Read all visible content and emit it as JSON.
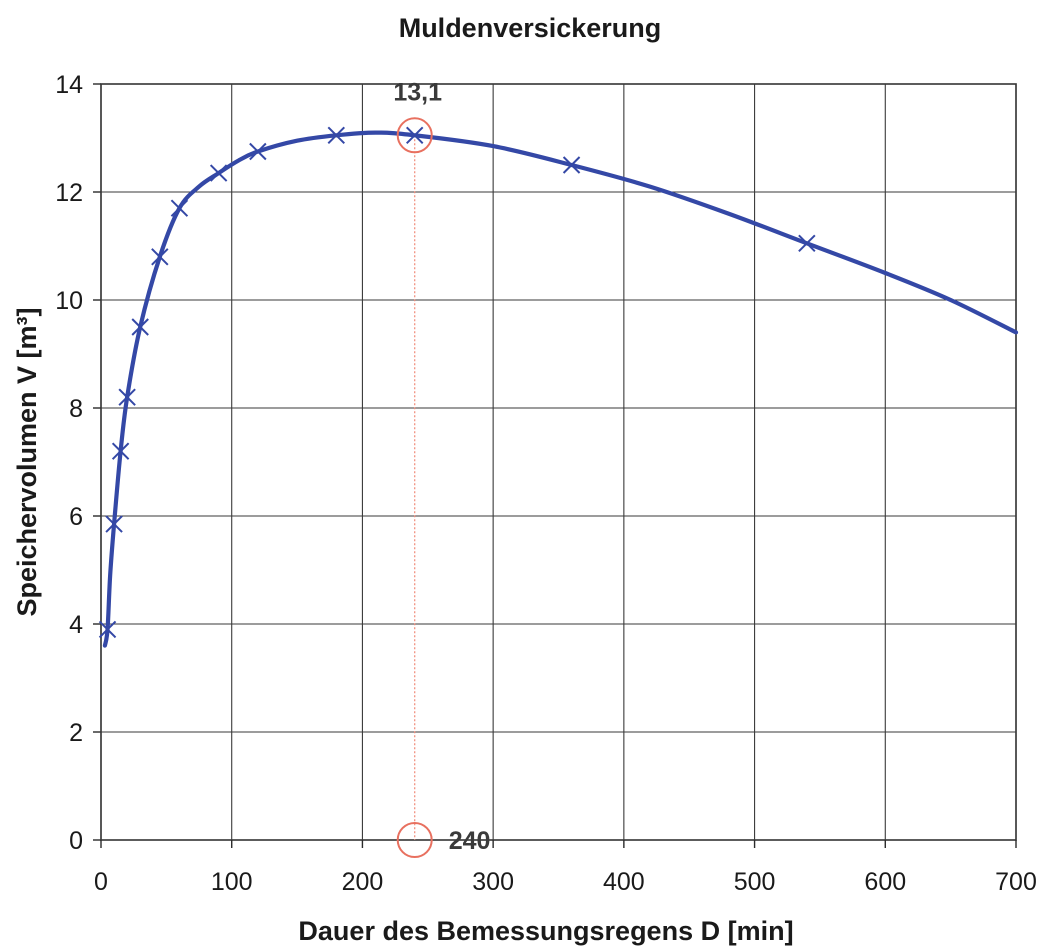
{
  "chart_data": {
    "type": "line",
    "title": "Muldenversickerung",
    "xlabel": "Dauer des Bemessungsregens  D [min]",
    "ylabel": "Speichervolumen V [m³]",
    "xlim": [
      0,
      700
    ],
    "ylim": [
      0,
      14
    ],
    "xticks": [
      "0",
      "100",
      "200",
      "300",
      "400",
      "500",
      "600",
      "700"
    ],
    "yticks": [
      "0",
      "2",
      "4",
      "6",
      "8",
      "10",
      "12",
      "14"
    ],
    "grid": true,
    "series": [
      {
        "color": "#3448a6",
        "marker": "x",
        "points": [
          {
            "x": 5,
            "y": 3.9
          },
          {
            "x": 10,
            "y": 5.85
          },
          {
            "x": 15,
            "y": 7.2
          },
          {
            "x": 20,
            "y": 8.2
          },
          {
            "x": 30,
            "y": 9.5
          },
          {
            "x": 45,
            "y": 10.8
          },
          {
            "x": 60,
            "y": 11.7
          },
          {
            "x": 90,
            "y": 12.35
          },
          {
            "x": 120,
            "y": 12.75
          },
          {
            "x": 180,
            "y": 13.05
          },
          {
            "x": 240,
            "y": 13.05
          },
          {
            "x": 360,
            "y": 12.5
          },
          {
            "x": 540,
            "y": 11.05
          }
        ],
        "curve": [
          [
            3,
            3.6
          ],
          [
            5,
            3.9
          ],
          [
            7,
            4.9
          ],
          [
            10,
            5.85
          ],
          [
            15,
            7.2
          ],
          [
            20,
            8.2
          ],
          [
            30,
            9.5
          ],
          [
            45,
            10.8
          ],
          [
            60,
            11.7
          ],
          [
            75,
            12.1
          ],
          [
            90,
            12.35
          ],
          [
            105,
            12.58
          ],
          [
            120,
            12.75
          ],
          [
            150,
            12.95
          ],
          [
            180,
            13.05
          ],
          [
            210,
            13.1
          ],
          [
            240,
            13.05
          ],
          [
            300,
            12.85
          ],
          [
            360,
            12.5
          ],
          [
            420,
            12.1
          ],
          [
            480,
            11.6
          ],
          [
            540,
            11.05
          ],
          [
            600,
            10.5
          ],
          [
            650,
            10.0
          ],
          [
            700,
            9.4
          ]
        ]
      }
    ],
    "annotations": [
      {
        "label": "13,1",
        "x": 240,
        "y": 13.05,
        "color": "#e8705f"
      },
      {
        "label": "240",
        "x": 240,
        "y": 0,
        "color": "#e8705f"
      }
    ]
  }
}
